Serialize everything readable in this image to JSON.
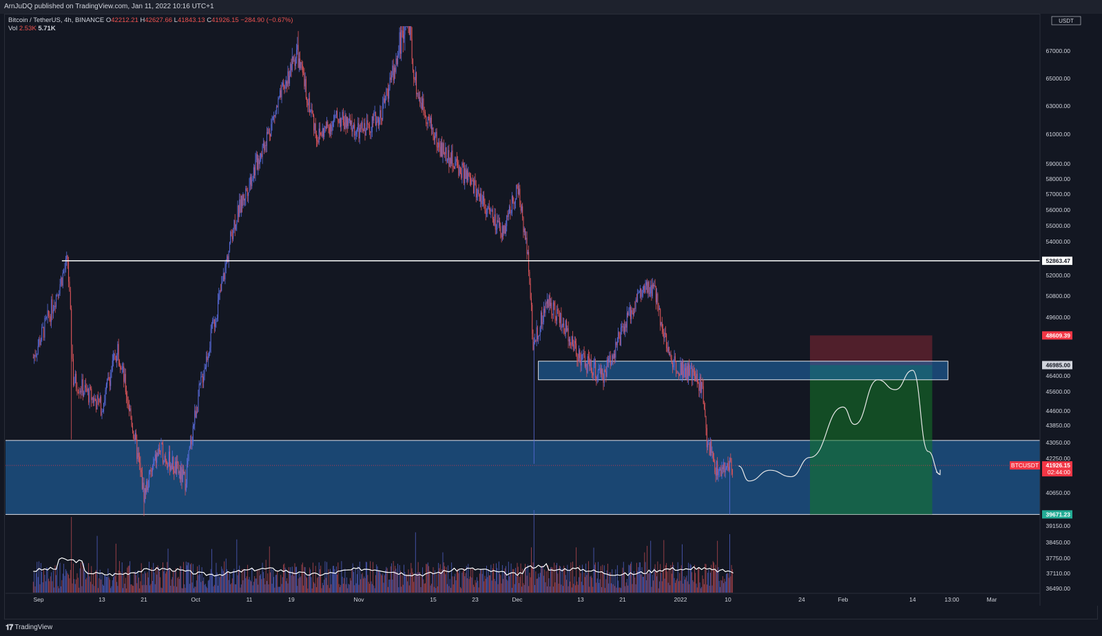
{
  "header": {
    "published": "ArnJuDQ published on TradingView.com, Jan 11, 2022 10:16 UTC+1"
  },
  "legend": {
    "symbol": "Bitcoin / TetherUS, 4h, BINANCE",
    "open_label": "O",
    "open": "42212.21",
    "high_label": "H",
    "high": "42627.66",
    "low_label": "L",
    "low": "41843.13",
    "close_label": "C",
    "close": "41926.15",
    "change": "−284.90 (−0.67%)",
    "vol_label": "Vol",
    "vol_1": "2.53K",
    "vol_2": "5.71K"
  },
  "price_axis": {
    "currency": "USDT",
    "ticks": [
      67000,
      65000,
      63000,
      61000,
      59000,
      58000,
      57000,
      56000,
      55000,
      54000,
      52000,
      50800,
      49600,
      46400,
      45600,
      44600,
      43850,
      43050,
      42250,
      40650,
      39150,
      38450,
      37750,
      37110,
      36490
    ],
    "tick_labels": [
      "67000.00",
      "65000.00",
      "63000.00",
      "61000.00",
      "59000.00",
      "58000.00",
      "57000.00",
      "56000.00",
      "55000.00",
      "54000.00",
      "52000.00",
      "50800.00",
      "49600.00",
      "46400.00",
      "45600.00",
      "44600.00",
      "43850.00",
      "43050.00",
      "42250.00",
      "40650.00",
      "39150.00",
      "38450.00",
      "37750.00",
      "37110.00",
      "36490.00"
    ],
    "badges": [
      {
        "label": "52863.47",
        "value": 52863.47,
        "bg": "#ffffff",
        "fg": "#131722"
      },
      {
        "label": "48609.39",
        "value": 48609.39,
        "bg": "#f23645",
        "fg": "#ffffff"
      },
      {
        "label": "46985.00",
        "value": 46985.0,
        "bg": "#d1d4dc",
        "fg": "#131722"
      },
      {
        "label": "41926.15",
        "value": 41926.15,
        "bg": "#f23645",
        "fg": "#ffffff",
        "sub": "02:44:00"
      },
      {
        "label": "39671.23",
        "value": 39671.23,
        "bg": "#22ab94",
        "fg": "#ffffff"
      }
    ],
    "symbol_tag": "BTCUSDT"
  },
  "time_axis": {
    "labels": [
      "Sep",
      "13",
      "21",
      "Oct",
      "11",
      "19",
      "Nov",
      "15",
      "23",
      "Dec",
      "13",
      "21",
      "2022",
      "10",
      "24",
      "Feb",
      "14",
      "13:00",
      "Mar"
    ]
  },
  "chart_data": {
    "type": "candlestick",
    "symbol": "Bitcoin / TetherUS",
    "interval": "4h",
    "exchange": "BINANCE",
    "ylim": [
      36490,
      67800
    ],
    "price_path": [
      {
        "t": "Sep 1",
        "price": 47400
      },
      {
        "t": "Sep 4",
        "price": 49900
      },
      {
        "t": "Sep 7",
        "price": 52863
      },
      {
        "t": "Sep 8",
        "price": 46200
      },
      {
        "t": "Sep 13",
        "price": 44800
      },
      {
        "t": "Sep 16",
        "price": 48000
      },
      {
        "t": "Sep 21",
        "price": 40600
      },
      {
        "t": "Sep 24",
        "price": 42700
      },
      {
        "t": "Sep 29",
        "price": 41200
      },
      {
        "t": "Oct 1",
        "price": 44600
      },
      {
        "t": "Oct 6",
        "price": 51500
      },
      {
        "t": "Oct 8",
        "price": 55000
      },
      {
        "t": "Oct 15",
        "price": 61500
      },
      {
        "t": "Oct 20",
        "price": 66900
      },
      {
        "t": "Oct 24",
        "price": 60800
      },
      {
        "t": "Oct 28",
        "price": 62200
      },
      {
        "t": "Nov 1",
        "price": 61100
      },
      {
        "t": "Nov 5",
        "price": 62300
      },
      {
        "t": "Nov 10",
        "price": 68700
      },
      {
        "t": "Nov 12",
        "price": 64000
      },
      {
        "t": "Nov 16",
        "price": 60200
      },
      {
        "t": "Nov 20",
        "price": 58700
      },
      {
        "t": "Nov 24",
        "price": 56900
      },
      {
        "t": "Nov 28",
        "price": 54400
      },
      {
        "t": "Dec 1",
        "price": 57400
      },
      {
        "t": "Dec 3",
        "price": 53500
      },
      {
        "t": "Dec 4",
        "price": 48200
      },
      {
        "t": "Dec 7",
        "price": 50600
      },
      {
        "t": "Dec 13",
        "price": 47400
      },
      {
        "t": "Dec 17",
        "price": 46300
      },
      {
        "t": "Dec 21",
        "price": 48800
      },
      {
        "t": "Dec 24",
        "price": 50900
      },
      {
        "t": "Dec 27",
        "price": 51200
      },
      {
        "t": "Dec 30",
        "price": 47300
      },
      {
        "t": "Jan 3",
        "price": 46500
      },
      {
        "t": "Jan 5",
        "price": 45900
      },
      {
        "t": "Jan 6",
        "price": 43200
      },
      {
        "t": "Jan 8",
        "price": 41600
      },
      {
        "t": "Jan 10",
        "price": 41800
      },
      {
        "t": "Jan 11",
        "price": 41926
      }
    ],
    "levels": {
      "resistance_line": 52863.47,
      "supply_zone": [
        46200,
        47200
      ],
      "demand_zone": [
        39671.23,
        43150
      ],
      "position_entry": 46985.0,
      "position_stop": 48609.39,
      "position_target": 39671.23
    },
    "projection": {
      "label": "projected path",
      "points": [
        {
          "t": "Jan 12",
          "price": 41900
        },
        {
          "t": "Jan 14",
          "price": 41200
        },
        {
          "t": "Jan 18",
          "price": 41700
        },
        {
          "t": "Jan 22",
          "price": 41400
        },
        {
          "t": "Jan 26",
          "price": 42300
        },
        {
          "t": "Feb 3",
          "price": 44800
        },
        {
          "t": "Feb 5",
          "price": 43900
        },
        {
          "t": "Feb 9",
          "price": 46200
        },
        {
          "t": "Feb 12",
          "price": 45700
        },
        {
          "t": "Feb 15",
          "price": 46700
        },
        {
          "t": "Feb 19",
          "price": 42600
        },
        {
          "t": "Feb 22",
          "price": 41500
        }
      ]
    }
  },
  "footer": {
    "brand": "TradingView"
  }
}
